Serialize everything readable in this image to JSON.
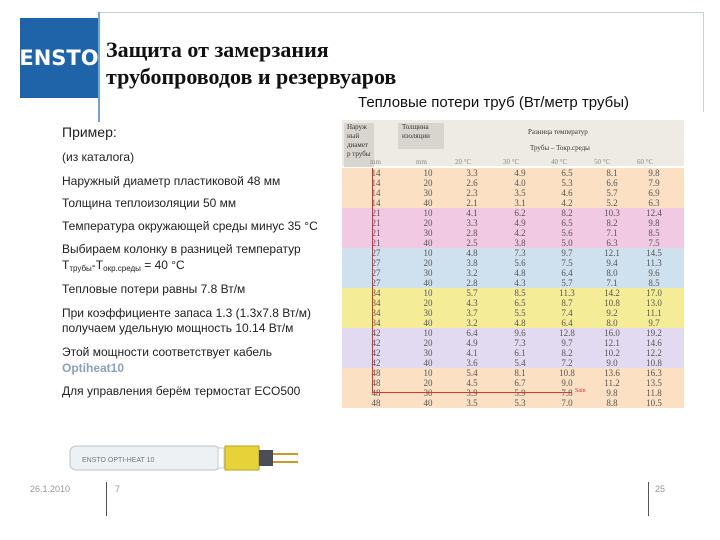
{
  "logo": {
    "text": "ENSTO"
  },
  "title": {
    "line1": "Защита от замерзания",
    "line2": "трубопроводов и резервуаров"
  },
  "subtitle": "Тепловые потери труб (Вт/метр трубы)",
  "example": {
    "label": "Пример:",
    "catalog": "(из каталога)",
    "diameter": "Наружный диаметр пластиковой 48 мм",
    "insulation": "Толщина теплоизоляции 50 мм",
    "ambient": "Температура окружающей среды минус 35 °C",
    "choose_line1": "Выбираем колонку в разницей температур",
    "choose_T1": "T",
    "choose_sub1": "трубы",
    "choose_dash": "-T",
    "choose_sub2": "окр.среды",
    "choose_eq": " = 40 °C",
    "losses": "Тепловые потери равны 7.8 Вт/м",
    "safety_line1": "При коэффициенте запаса 1.3 (1.3х7.8 Вт/м)",
    "safety_line2": "получаем удельную мощность 10.14 Вт/м",
    "cable_line1": "Этой мощности соответствует кабель",
    "cable_name": "Optiheat10",
    "thermostat": "Для управления берём термостат ECO500"
  },
  "cable_print": "ENSTO  OPTI-HEAT 10",
  "footer": {
    "date": "26.1.2010",
    "slide_num": "7",
    "page": "25"
  },
  "table": {
    "header": {
      "col_a": [
        "Наруж",
        "ный",
        "диамет",
        "р трубы"
      ],
      "col_b": [
        "Толщина",
        "изоляции"
      ],
      "col_c": "Разница температур",
      "col_d": "Трубы – Токр.среды",
      "units_a": "mm",
      "units_b": "mm",
      "temps": [
        "20 °C",
        "30 °C",
        "40 °C",
        "50 °C",
        "60 °C"
      ]
    },
    "marker": "Sain",
    "groups": [
      {
        "color": "#fbe0c4",
        "rows": [
          [
            "14",
            "10",
            "3.3",
            "4.9",
            "6.5",
            "8.1",
            "9.8"
          ],
          [
            "14",
            "20",
            "2.6",
            "4.0",
            "5.3",
            "6.6",
            "7.9"
          ],
          [
            "14",
            "30",
            "2.3",
            "3.5",
            "4.6",
            "5.7",
            "6.9"
          ],
          [
            "14",
            "40",
            "2.1",
            "3.1",
            "4.2",
            "5.2",
            "6.3"
          ]
        ]
      },
      {
        "color": "#f2c9e3",
        "rows": [
          [
            "21",
            "10",
            "4.1",
            "6.2",
            "8.2",
            "10.3",
            "12.4"
          ],
          [
            "21",
            "20",
            "3.3",
            "4.9",
            "6.5",
            "8.2",
            "9.8"
          ],
          [
            "21",
            "30",
            "2.8",
            "4.2",
            "5.6",
            "7.1",
            "8.5"
          ],
          [
            "21",
            "40",
            "2.5",
            "3.8",
            "5.0",
            "6.3",
            "7.5"
          ]
        ]
      },
      {
        "color": "#cfe1ee",
        "rows": [
          [
            "27",
            "10",
            "4.8",
            "7.3",
            "9.7",
            "12.1",
            "14.5"
          ],
          [
            "27",
            "20",
            "3.8",
            "5.6",
            "7.5",
            "9.4",
            "11.3"
          ],
          [
            "27",
            "30",
            "3.2",
            "4.8",
            "6.4",
            "8.0",
            "9.6"
          ],
          [
            "27",
            "40",
            "2.8",
            "4.3",
            "5.7",
            "7.1",
            "8.5"
          ]
        ]
      },
      {
        "color": "#f5ec98",
        "rows": [
          [
            "34",
            "10",
            "5.7",
            "8.5",
            "11.3",
            "14.2",
            "17.0"
          ],
          [
            "34",
            "20",
            "4.3",
            "6.5",
            "8.7",
            "10.8",
            "13.0"
          ],
          [
            "34",
            "30",
            "3.7",
            "5.5",
            "7.4",
            "9.2",
            "11.1"
          ],
          [
            "34",
            "40",
            "3.2",
            "4.8",
            "6.4",
            "8.0",
            "9.7"
          ]
        ]
      },
      {
        "color": "#e2daf1",
        "rows": [
          [
            "42",
            "10",
            "6.4",
            "9.6",
            "12.8",
            "16.0",
            "19.2"
          ],
          [
            "42",
            "20",
            "4.9",
            "7.3",
            "9.7",
            "12.1",
            "14.6"
          ],
          [
            "42",
            "30",
            "4.1",
            "6.1",
            "8.2",
            "10.2",
            "12.2"
          ],
          [
            "42",
            "40",
            "3.6",
            "5.4",
            "7.2",
            "9.0",
            "10.8"
          ]
        ]
      },
      {
        "color": "#fbe0c4",
        "rows": [
          [
            "48",
            "10",
            "5.4",
            "8.1",
            "10.8",
            "13.6",
            "16.3"
          ],
          [
            "48",
            "20",
            "4.5",
            "6.7",
            "9.0",
            "11.2",
            "13.5"
          ],
          [
            "48",
            "30",
            "3.9",
            "5.9",
            "7.8",
            "9.8",
            "11.8"
          ],
          [
            "48",
            "40",
            "3.5",
            "5.3",
            "7.0",
            "8.8",
            "10.5"
          ]
        ]
      }
    ]
  }
}
